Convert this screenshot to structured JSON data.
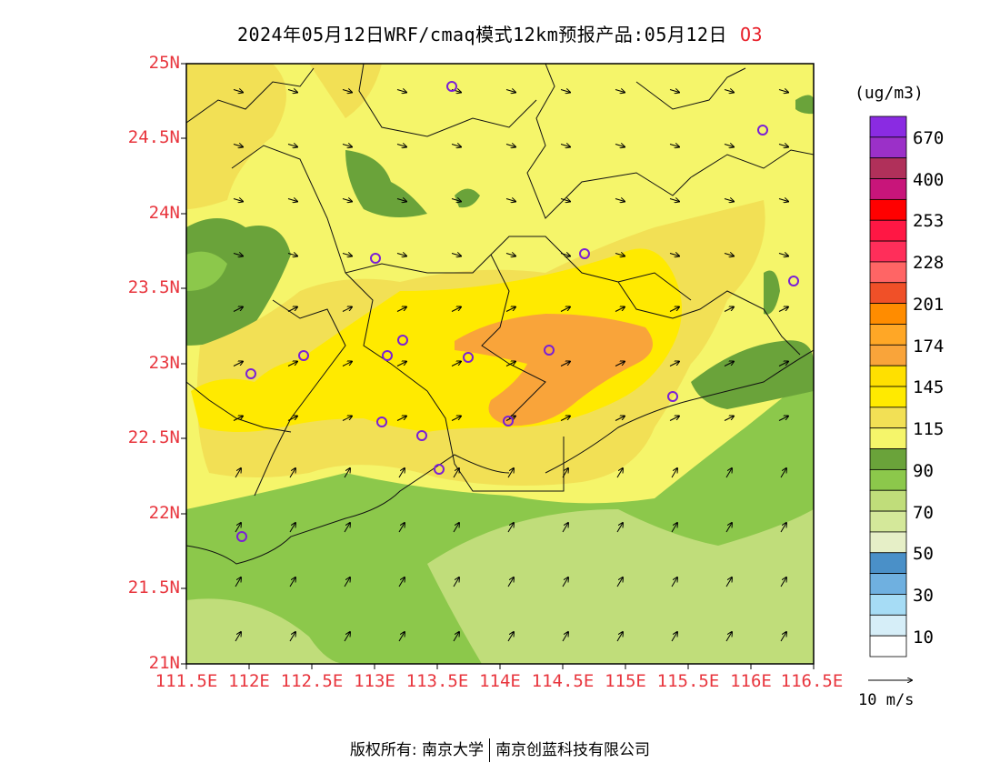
{
  "title": {
    "text": "2024年05月12日WRF/cmaq模式12km预报产品:05月12日",
    "pollutant": "O3"
  },
  "colors": {
    "axis_labels": "#e8353d",
    "title_pollutant": "#e8202a"
  },
  "axes": {
    "lat_labels": [
      "25N",
      "24.5N",
      "24N",
      "23.5N",
      "23N",
      "22.5N",
      "22N",
      "21.5N",
      "21N"
    ],
    "lon_labels": [
      "111.5E",
      "112E",
      "112.5E",
      "113E",
      "113.5E",
      "114E",
      "114.5E",
      "115E",
      "115.5E",
      "116E",
      "116.5E"
    ]
  },
  "colorbar": {
    "unit": "(ug/m3)",
    "colors": [
      "#8a2be2",
      "#9b30c8",
      "#b0305a",
      "#c8157a",
      "#ff0000",
      "#ff1744",
      "#ff2e5a",
      "#ff6565",
      "#f05028",
      "#ff8c00",
      "#ffa726",
      "#f9a43a",
      "#ffe000",
      "#ffea00",
      "#f2e055",
      "#f5f56a",
      "#6aa33a",
      "#8cc84b",
      "#c0dd7a",
      "#d4e89a",
      "#e6efc7",
      "#4a90c8",
      "#6fb0e0",
      "#a6dcf5",
      "#d6eef8",
      "#ffffff"
    ],
    "labels": [
      "670",
      "400",
      "253",
      "228",
      "201",
      "174",
      "145",
      "115",
      "90",
      "70",
      "50",
      "30",
      "10"
    ]
  },
  "wind_reference": "10 m/s",
  "footer": {
    "left": "版权所有: 南京大学",
    "right": "南京创蓝科技有限公司"
  }
}
